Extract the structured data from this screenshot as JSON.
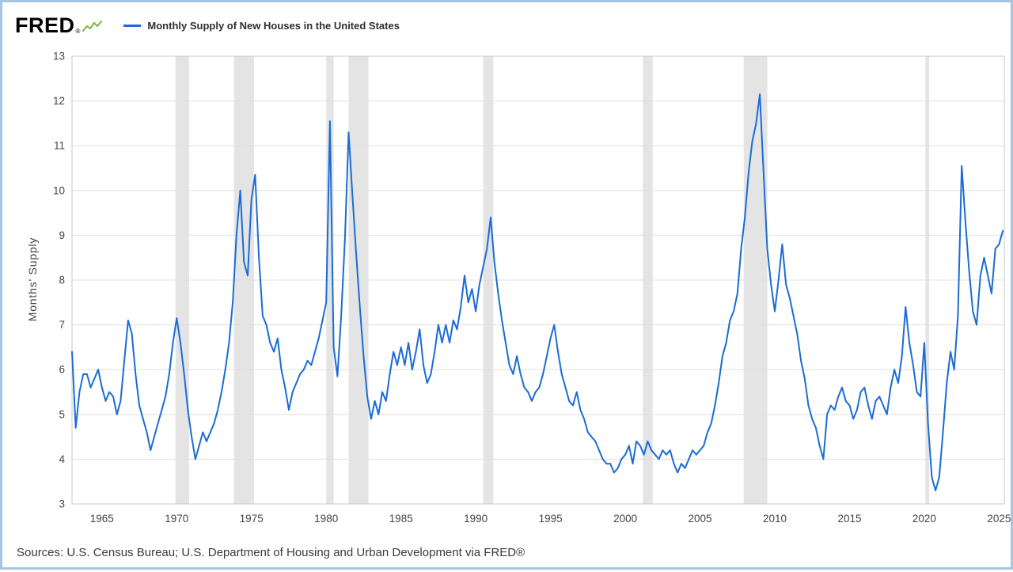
{
  "header": {
    "logo_text": "FRED",
    "logo_registered": "®",
    "legend_label": "Monthly Supply of New Houses in the United States"
  },
  "footer": {
    "sources": "Sources: U.S. Census Bureau; U.S. Department of Housing and Urban Development via FRED®"
  },
  "icons": {
    "fred_sparkline": "green-sparkline-icon"
  },
  "chart_data": {
    "type": "line",
    "title": "Monthly Supply of New Houses in the United States",
    "xlabel": "",
    "ylabel": "Months' Supply",
    "xlim": [
      1963,
      2025.35
    ],
    "ylim": [
      3,
      13
    ],
    "x_ticks": [
      1965,
      1970,
      1975,
      1980,
      1985,
      1990,
      1995,
      2000,
      2005,
      2010,
      2015,
      2020,
      2025
    ],
    "y_ticks": [
      3,
      4,
      5,
      6,
      7,
      8,
      9,
      10,
      11,
      12,
      13
    ],
    "grid": true,
    "legend_position": "top-left",
    "line_color": "#1b6cd6",
    "grid_color": "#e0e0e0",
    "recession_band_color": "#e4e4e4",
    "recessions": [
      [
        1969.92,
        1970.83
      ],
      [
        1973.83,
        1975.17
      ],
      [
        1980.0,
        1980.5
      ],
      [
        1981.5,
        1982.83
      ],
      [
        1990.5,
        1991.17
      ],
      [
        2001.17,
        2001.83
      ],
      [
        2007.92,
        2009.5
      ],
      [
        2020.08,
        2020.33
      ]
    ],
    "series": {
      "name": "Monthly Supply of New Houses in the United States",
      "units": "Months' Supply",
      "x_start": 1963.0,
      "x_step": 0.25,
      "values": [
        6.4,
        4.7,
        5.5,
        5.9,
        5.9,
        5.6,
        5.8,
        6.0,
        5.6,
        5.3,
        5.5,
        5.4,
        5.0,
        5.3,
        6.2,
        7.1,
        6.8,
        5.9,
        5.2,
        4.9,
        4.6,
        4.2,
        4.5,
        4.8,
        5.1,
        5.4,
        5.9,
        6.6,
        7.15,
        6.6,
        5.9,
        5.1,
        4.5,
        4.0,
        4.3,
        4.6,
        4.4,
        4.6,
        4.8,
        5.1,
        5.5,
        6.0,
        6.6,
        7.5,
        9.0,
        10.0,
        8.4,
        8.1,
        9.8,
        10.35,
        8.5,
        7.2,
        7.0,
        6.6,
        6.4,
        6.7,
        6.0,
        5.6,
        5.1,
        5.5,
        5.7,
        5.9,
        6.0,
        6.2,
        6.1,
        6.4,
        6.7,
        7.1,
        7.5,
        11.55,
        6.5,
        5.85,
        7.2,
        8.9,
        11.3,
        9.9,
        8.6,
        7.4,
        6.3,
        5.4,
        4.9,
        5.3,
        5.0,
        5.5,
        5.3,
        5.9,
        6.4,
        6.1,
        6.5,
        6.1,
        6.6,
        6.0,
        6.4,
        6.9,
        6.1,
        5.7,
        5.9,
        6.4,
        7.0,
        6.6,
        7.0,
        6.6,
        7.1,
        6.9,
        7.4,
        8.1,
        7.5,
        7.8,
        7.3,
        7.9,
        8.3,
        8.7,
        9.4,
        8.4,
        7.7,
        7.1,
        6.6,
        6.1,
        5.9,
        6.3,
        5.9,
        5.6,
        5.5,
        5.3,
        5.5,
        5.6,
        5.9,
        6.3,
        6.7,
        7.0,
        6.4,
        5.9,
        5.6,
        5.3,
        5.2,
        5.5,
        5.1,
        4.9,
        4.6,
        4.5,
        4.4,
        4.2,
        4.0,
        3.9,
        3.9,
        3.7,
        3.8,
        4.0,
        4.1,
        4.3,
        3.9,
        4.4,
        4.3,
        4.1,
        4.4,
        4.2,
        4.1,
        4.0,
        4.2,
        4.1,
        4.2,
        3.9,
        3.7,
        3.9,
        3.8,
        4.0,
        4.2,
        4.1,
        4.2,
        4.3,
        4.6,
        4.8,
        5.2,
        5.7,
        6.3,
        6.6,
        7.1,
        7.3,
        7.7,
        8.7,
        9.4,
        10.4,
        11.1,
        11.5,
        12.15,
        10.4,
        8.7,
        7.9,
        7.3,
        8.0,
        8.8,
        7.9,
        7.6,
        7.2,
        6.8,
        6.2,
        5.8,
        5.2,
        4.9,
        4.7,
        4.3,
        4.0,
        5.0,
        5.2,
        5.1,
        5.4,
        5.6,
        5.3,
        5.2,
        4.9,
        5.1,
        5.5,
        5.6,
        5.2,
        4.9,
        5.3,
        5.4,
        5.2,
        5.0,
        5.6,
        6.0,
        5.7,
        6.3,
        7.4,
        6.6,
        6.1,
        5.5,
        5.4,
        6.6,
        4.8,
        3.6,
        3.3,
        3.6,
        4.6,
        5.7,
        6.4,
        6.0,
        7.2,
        10.55,
        9.3,
        8.2,
        7.3,
        7.0,
        8.1,
        8.5,
        8.1,
        7.7,
        8.7,
        8.8,
        9.1
      ]
    }
  }
}
